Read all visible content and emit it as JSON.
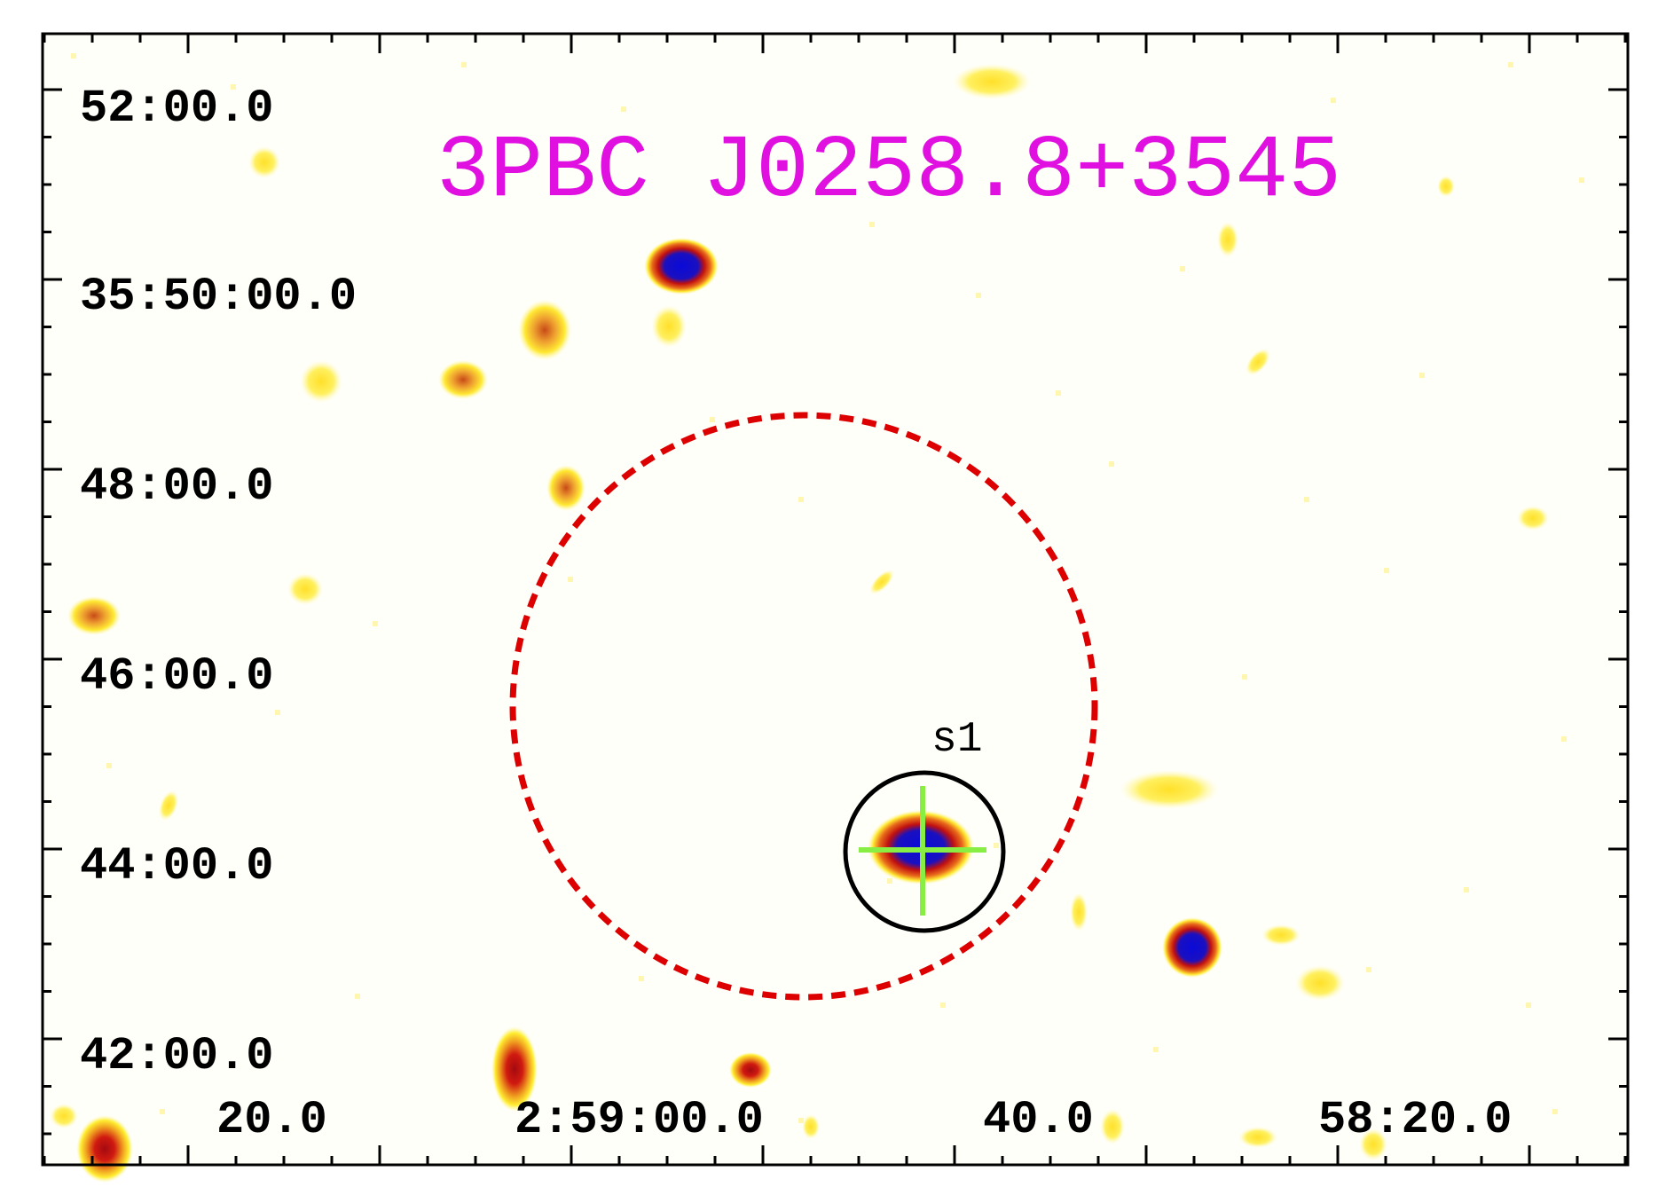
{
  "title": "3PBC J0258.8+3545",
  "dec_labels": [
    "52:00.0",
    "35:50:00.0",
    "48:00.0",
    "46:00.0",
    "44:00.0",
    "42:00.0"
  ],
  "ra_labels": [
    "20.0",
    "2:59:00.0",
    "40.0",
    "58:20.0"
  ],
  "source_label": "s1",
  "colors": {
    "title": "#e010e0",
    "error_circle": "#dd0000",
    "source_circle": "#000000",
    "crosshair": "#88ee44",
    "blob_core": "#1010dd",
    "blob_mid": "#cc1010",
    "blob_outer": "#ffee33"
  }
}
